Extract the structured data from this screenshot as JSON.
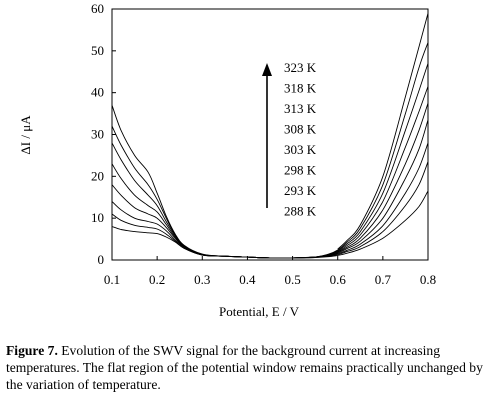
{
  "chart_data": {
    "type": "line",
    "xlabel": "Potential, E  / V",
    "ylabel": "ΔI / μA",
    "xlim": [
      0.1,
      0.8
    ],
    "ylim": [
      0,
      60
    ],
    "xticks": [
      "0.1",
      "0.2",
      "0.3",
      "0.4",
      "0.5",
      "0.6",
      "0.7",
      "0.8"
    ],
    "yticks": [
      "0",
      "10",
      "20",
      "30",
      "40",
      "50",
      "60"
    ],
    "grid": false,
    "annotation": {
      "labels": [
        "323 K",
        "318 K",
        "313 K",
        "308 K",
        "303 K",
        "298 K",
        "293 K",
        "288 K"
      ],
      "arrow_direction": "up"
    },
    "series": [
      {
        "x": [
          0.1,
          0.12,
          0.15,
          0.18,
          0.2,
          0.22,
          0.24,
          0.26,
          0.3,
          0.35,
          0.4,
          0.45,
          0.5,
          0.55,
          0.58,
          0.6,
          0.62,
          0.65,
          0.7,
          0.75,
          0.78,
          0.8
        ],
        "values": [
          8,
          7.3,
          6.8,
          6.5,
          6.3,
          5.5,
          4.3,
          2.8,
          1.2,
          0.9,
          0.7,
          0.5,
          0.5,
          0.6,
          0.8,
          1.1,
          1.6,
          2.6,
          5.2,
          9.5,
          12.8,
          16.5
        ]
      },
      {
        "x": [
          0.1,
          0.12,
          0.15,
          0.18,
          0.2,
          0.22,
          0.24,
          0.26,
          0.3,
          0.35,
          0.4,
          0.45,
          0.5,
          0.55,
          0.58,
          0.6,
          0.62,
          0.65,
          0.7,
          0.75,
          0.78,
          0.8
        ],
        "values": [
          11,
          9.5,
          8.3,
          7.8,
          7.4,
          6.2,
          4.5,
          2.8,
          1.2,
          0.9,
          0.7,
          0.5,
          0.5,
          0.6,
          0.9,
          1.3,
          2,
          3.2,
          6.8,
          13,
          18,
          23.5
        ]
      },
      {
        "x": [
          0.1,
          0.12,
          0.15,
          0.18,
          0.2,
          0.22,
          0.24,
          0.26,
          0.3,
          0.35,
          0.4,
          0.45,
          0.5,
          0.55,
          0.58,
          0.6,
          0.62,
          0.65,
          0.7,
          0.75,
          0.78,
          0.8
        ],
        "values": [
          14,
          12,
          10,
          9.2,
          8.6,
          7,
          4.8,
          3,
          1.2,
          0.9,
          0.7,
          0.5,
          0.5,
          0.7,
          1,
          1.5,
          2.3,
          3.8,
          8.2,
          16,
          22,
          28
        ]
      },
      {
        "x": [
          0.1,
          0.12,
          0.15,
          0.18,
          0.2,
          0.22,
          0.24,
          0.26,
          0.3,
          0.35,
          0.4,
          0.45,
          0.5,
          0.55,
          0.58,
          0.6,
          0.62,
          0.65,
          0.7,
          0.75,
          0.78,
          0.8
        ],
        "values": [
          18,
          15.5,
          12.5,
          11,
          10,
          7.8,
          5.2,
          3.1,
          1.3,
          0.9,
          0.7,
          0.5,
          0.5,
          0.7,
          1.1,
          1.7,
          2.7,
          4.5,
          10,
          19.5,
          26.5,
          33.5
        ]
      },
      {
        "x": [
          0.1,
          0.12,
          0.15,
          0.18,
          0.2,
          0.22,
          0.24,
          0.26,
          0.3,
          0.35,
          0.4,
          0.45,
          0.5,
          0.55,
          0.58,
          0.6,
          0.62,
          0.65,
          0.7,
          0.75,
          0.78,
          0.8
        ],
        "values": [
          23,
          19.5,
          15.5,
          13,
          11.5,
          8.5,
          5.5,
          3.2,
          1.3,
          0.9,
          0.7,
          0.5,
          0.5,
          0.7,
          1.2,
          1.9,
          3,
          5.2,
          12,
          23,
          31,
          37.5
        ]
      },
      {
        "x": [
          0.1,
          0.12,
          0.15,
          0.18,
          0.2,
          0.22,
          0.24,
          0.26,
          0.3,
          0.35,
          0.4,
          0.45,
          0.5,
          0.55,
          0.58,
          0.6,
          0.62,
          0.65,
          0.7,
          0.75,
          0.78,
          0.8
        ],
        "values": [
          28,
          24,
          19,
          15.5,
          13,
          9.2,
          5.8,
          3.3,
          1.3,
          0.9,
          0.7,
          0.5,
          0.5,
          0.7,
          1.2,
          2,
          3.4,
          6,
          14,
          27,
          35.5,
          41.5
        ]
      },
      {
        "x": [
          0.1,
          0.12,
          0.15,
          0.18,
          0.2,
          0.22,
          0.24,
          0.26,
          0.3,
          0.35,
          0.4,
          0.45,
          0.5,
          0.55,
          0.58,
          0.6,
          0.62,
          0.65,
          0.7,
          0.75,
          0.78,
          0.8
        ],
        "values": [
          32,
          27.5,
          22,
          18,
          14.5,
          10,
          6,
          3.4,
          1.3,
          0.9,
          0.7,
          0.5,
          0.5,
          0.7,
          1.3,
          2.2,
          3.8,
          6.8,
          16,
          31,
          40.5,
          47
        ]
      },
      {
        "x": [
          0.1,
          0.12,
          0.15,
          0.18,
          0.2,
          0.22,
          0.24,
          0.26,
          0.3,
          0.35,
          0.4,
          0.45,
          0.5,
          0.55,
          0.58,
          0.6,
          0.62,
          0.65,
          0.7,
          0.75,
          0.78,
          0.8
        ],
        "values": [
          37,
          31,
          25,
          21,
          16,
          10.5,
          6.2,
          3.5,
          1.4,
          0.9,
          0.7,
          0.5,
          0.5,
          0.7,
          1.4,
          2.4,
          4.2,
          7.6,
          18,
          35,
          46,
          52
        ]
      },
      {
        "x": [
          0.6,
          0.62,
          0.65,
          0.7,
          0.75,
          0.78,
          0.8
        ],
        "values": [
          2.6,
          4.6,
          8.4,
          20,
          39,
          51,
          59
        ]
      }
    ]
  },
  "caption": {
    "label": "Figure 7.",
    "text": " Evolution of the SWV signal for the background current at increasing temperatures. The flat region of the potential window remains practically unchanged by the variation of temperature."
  }
}
